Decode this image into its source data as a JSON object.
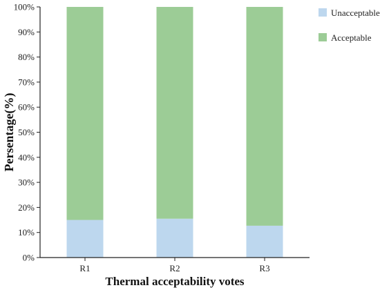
{
  "colors": {
    "unacceptable": "#bdd7ee",
    "acceptable": "#9ccc96",
    "axis": "#222222"
  },
  "chart_data": {
    "type": "bar",
    "stacked": true,
    "title": "",
    "xlabel": "Thermal acceptability votes",
    "ylabel": "Persentage(%)",
    "categories": [
      "R1",
      "R2",
      "R3"
    ],
    "series": [
      {
        "name": "Unacceptable",
        "values": [
          15,
          15.5,
          12.7
        ]
      },
      {
        "name": "Acceptable",
        "values": [
          85,
          84.5,
          87.3
        ]
      }
    ],
    "ylim": [
      0,
      100
    ],
    "yticks": [
      "0%",
      "10%",
      "20%",
      "30%",
      "40%",
      "50%",
      "60%",
      "70%",
      "80%",
      "90%",
      "100%"
    ],
    "grid": false,
    "legend": "right"
  }
}
